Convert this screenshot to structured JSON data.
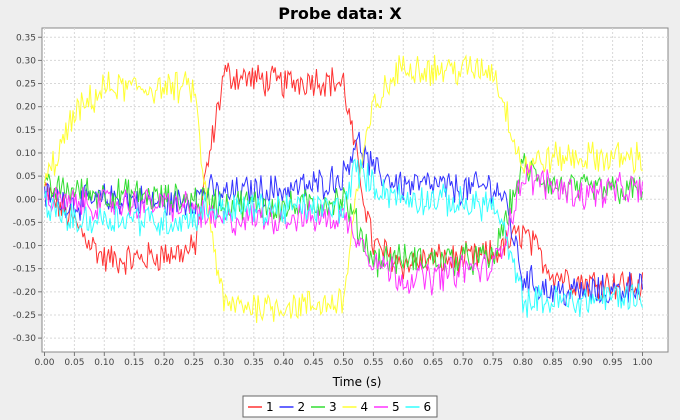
{
  "chart_data": {
    "type": "line",
    "title": "Probe data: X",
    "xlabel": "Time (s)",
    "ylabel": "",
    "xlim": [
      0.0,
      1.0
    ],
    "ylim": [
      -0.33,
      0.37
    ],
    "x_ticks": [
      "0.00",
      "0.05",
      "0.10",
      "0.15",
      "0.20",
      "0.25",
      "0.30",
      "0.35",
      "0.40",
      "0.45",
      "0.50",
      "0.55",
      "0.60",
      "0.65",
      "0.70",
      "0.75",
      "0.80",
      "0.85",
      "0.90",
      "0.95",
      "1.00"
    ],
    "y_ticks": [
      "0.35",
      "0.30",
      "0.25",
      "0.20",
      "0.15",
      "0.10",
      "0.05",
      "0.00",
      "-0.05",
      "-0.10",
      "-0.15",
      "-0.20",
      "-0.25",
      "-0.30"
    ],
    "x_tick_values": [
      0.0,
      0.05,
      0.1,
      0.15,
      0.2,
      0.25,
      0.3,
      0.35,
      0.4,
      0.45,
      0.5,
      0.55,
      0.6,
      0.65,
      0.7,
      0.75,
      0.8,
      0.85,
      0.9,
      0.95,
      1.0
    ],
    "y_tick_values": [
      0.35,
      0.3,
      0.25,
      0.2,
      0.15,
      0.1,
      0.05,
      0.0,
      -0.05,
      -0.1,
      -0.15,
      -0.2,
      -0.25,
      -0.3
    ],
    "grid": true,
    "legend_position": "bottom",
    "x": [
      0.0,
      0.05,
      0.1,
      0.15,
      0.2,
      0.25,
      0.27,
      0.3,
      0.35,
      0.4,
      0.45,
      0.5,
      0.52,
      0.55,
      0.6,
      0.65,
      0.7,
      0.75,
      0.77,
      0.8,
      0.85,
      0.9,
      0.95,
      1.0
    ],
    "series": [
      {
        "name": "1",
        "color": "#ff3333",
        "values": [
          0.02,
          -0.05,
          -0.13,
          -0.13,
          -0.12,
          -0.11,
          0.05,
          0.27,
          0.26,
          0.25,
          0.26,
          0.25,
          0.1,
          -0.1,
          -0.14,
          -0.13,
          -0.13,
          -0.12,
          -0.1,
          -0.07,
          -0.16,
          -0.18,
          -0.18,
          -0.19
        ]
      },
      {
        "name": "2",
        "color": "#3333ff",
        "values": [
          0.01,
          -0.01,
          0.0,
          0.0,
          -0.01,
          0.0,
          0.02,
          0.01,
          0.02,
          0.02,
          0.03,
          0.05,
          0.13,
          0.06,
          0.03,
          0.03,
          0.02,
          0.03,
          0.0,
          -0.17,
          -0.2,
          -0.2,
          -0.2,
          -0.18
        ]
      },
      {
        "name": "3",
        "color": "#33dd33",
        "values": [
          0.02,
          0.02,
          0.01,
          0.01,
          0.0,
          0.0,
          0.0,
          -0.01,
          -0.01,
          -0.02,
          -0.01,
          0.0,
          -0.05,
          -0.13,
          -0.13,
          -0.13,
          -0.13,
          -0.13,
          -0.05,
          0.07,
          0.03,
          0.02,
          0.02,
          0.02
        ]
      },
      {
        "name": "4",
        "color": "#ffff33",
        "values": [
          0.03,
          0.18,
          0.24,
          0.24,
          0.24,
          0.24,
          0.0,
          -0.23,
          -0.23,
          -0.23,
          -0.23,
          -0.22,
          0.0,
          0.2,
          0.29,
          0.28,
          0.28,
          0.28,
          0.2,
          0.07,
          0.09,
          0.09,
          0.09,
          0.09
        ]
      },
      {
        "name": "5",
        "color": "#ff33ff",
        "values": [
          0.0,
          -0.01,
          -0.01,
          -0.01,
          -0.01,
          -0.02,
          -0.04,
          -0.05,
          -0.04,
          -0.04,
          -0.04,
          -0.04,
          -0.07,
          -0.13,
          -0.17,
          -0.17,
          -0.15,
          -0.15,
          -0.08,
          0.05,
          0.03,
          0.01,
          0.02,
          0.02
        ]
      },
      {
        "name": "6",
        "color": "#33ffff",
        "values": [
          -0.01,
          -0.05,
          -0.04,
          -0.04,
          -0.05,
          -0.04,
          -0.02,
          -0.02,
          -0.02,
          -0.02,
          -0.02,
          -0.02,
          0.07,
          0.03,
          0.0,
          0.0,
          -0.01,
          -0.01,
          -0.08,
          -0.22,
          -0.22,
          -0.22,
          -0.21,
          -0.21
        ]
      }
    ]
  }
}
